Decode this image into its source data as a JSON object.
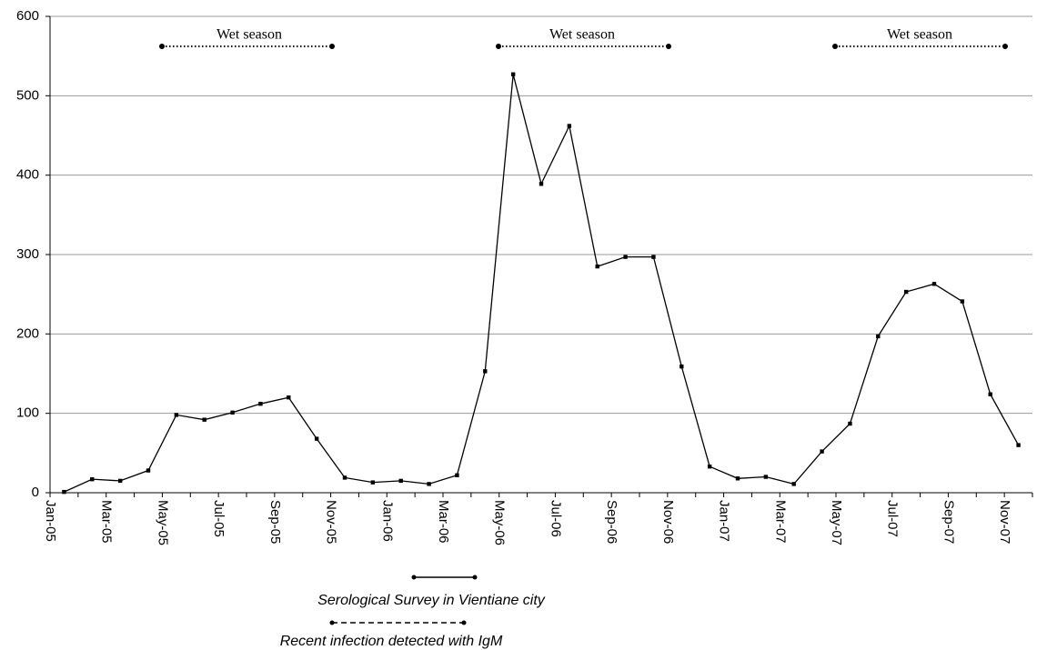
{
  "chart_data": {
    "type": "line",
    "categories": [
      "Jan-05",
      null,
      "Mar-05",
      null,
      "May-05",
      null,
      "Jul-05",
      null,
      "Sep-05",
      null,
      "Nov-05",
      null,
      "Jan-06",
      null,
      "Mar-06",
      null,
      "May-06",
      null,
      "Jul-06",
      null,
      "Sep-06",
      null,
      "Nov-06",
      null,
      "Jan-07",
      null,
      "Mar-07",
      null,
      "May-07",
      null,
      "Jul-07",
      null,
      "Sep-07",
      null,
      "Nov-07"
    ],
    "values": [
      1,
      17,
      15,
      28,
      98,
      92,
      101,
      112,
      120,
      68,
      19,
      13,
      15,
      11,
      22,
      153,
      527,
      389,
      462,
      285,
      297,
      297,
      159,
      33,
      18,
      20,
      11,
      52,
      87,
      197,
      253,
      263,
      241,
      124,
      60
    ],
    "color": "#000000",
    "ylim": [
      0,
      600
    ],
    "yticks": [
      0,
      100,
      200,
      300,
      400,
      500,
      600
    ],
    "grid": true,
    "annotations": [
      "Wet season",
      "Wet season",
      "Wet season",
      "Serological Survey in Vientiane city",
      "Recent infection detected with IgM"
    ]
  }
}
